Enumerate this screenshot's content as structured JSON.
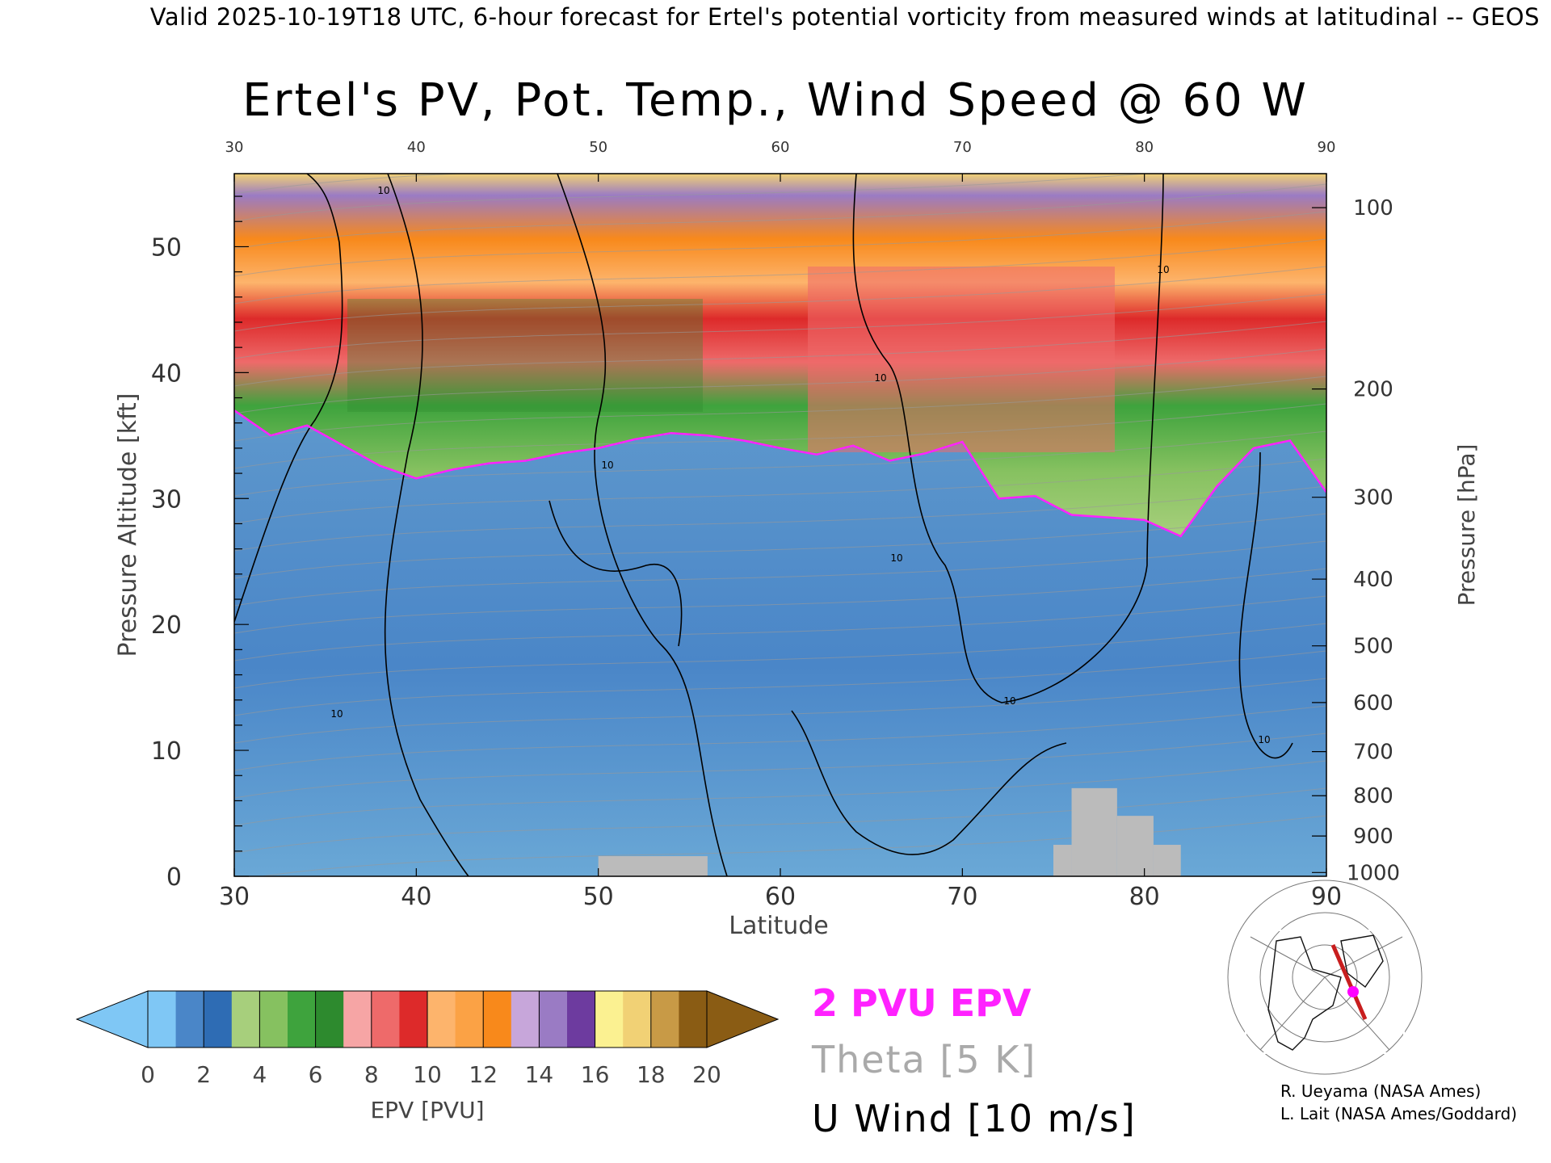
{
  "header": "Valid 2025-10-19T18 UTC, 6-hour forecast for Ertel's potential vorticity from measured winds at latitudinal -- GEOS",
  "title": "Ertel's PV, Pot. Temp., Wind Speed @ 60 W",
  "chart_data": {
    "type": "heatmap",
    "xlabel": "Latitude",
    "ylabel": "Pressure Altitude [kft]",
    "y2label": "Pressure [hPa]",
    "xlim": [
      30,
      90
    ],
    "ylim": [
      0,
      55.8
    ],
    "x_ticks": [
      "30",
      "40",
      "50",
      "60",
      "70",
      "80",
      "90"
    ],
    "top_ticks": [
      "30",
      "40",
      "50",
      "60",
      "70",
      "80",
      "90"
    ],
    "y_ticks": [
      "0",
      "10",
      "20",
      "30",
      "40",
      "50"
    ],
    "pressure_ticks": [
      {
        "label": "100",
        "kft": 53.1
      },
      {
        "label": "200",
        "kft": 38.7
      },
      {
        "label": "300",
        "kft": 30.1
      },
      {
        "label": "400",
        "kft": 23.6
      },
      {
        "label": "500",
        "kft": 18.3
      },
      {
        "label": "600",
        "kft": 13.8
      },
      {
        "label": "700",
        "kft": 9.9
      },
      {
        "label": "800",
        "kft": 6.4
      },
      {
        "label": "900",
        "kft": 3.2
      },
      {
        "label": "1000",
        "kft": 0.3
      }
    ],
    "tropopause_2pvu": [
      [
        30,
        37.0
      ],
      [
        32,
        35.0
      ],
      [
        34,
        35.8
      ],
      [
        36,
        34.2
      ],
      [
        38,
        32.6
      ],
      [
        40,
        31.6
      ],
      [
        42,
        32.3
      ],
      [
        44,
        32.8
      ],
      [
        46,
        33.0
      ],
      [
        48,
        33.6
      ],
      [
        50,
        34.0
      ],
      [
        52,
        34.7
      ],
      [
        54,
        35.2
      ],
      [
        56,
        35.0
      ],
      [
        58,
        34.6
      ],
      [
        60,
        34.0
      ],
      [
        62,
        33.5
      ],
      [
        64,
        34.2
      ],
      [
        66,
        33.0
      ],
      [
        68,
        33.6
      ],
      [
        70,
        34.5
      ],
      [
        72,
        30.0
      ],
      [
        74,
        30.2
      ],
      [
        76,
        28.7
      ],
      [
        78,
        28.5
      ],
      [
        80,
        28.3
      ],
      [
        82,
        27.0
      ],
      [
        84,
        31.0
      ],
      [
        86,
        34.0
      ],
      [
        88,
        34.6
      ],
      [
        90,
        30.5
      ]
    ],
    "colorbar": {
      "label": "EPV [PVU]",
      "ticks": [
        "0",
        "2",
        "4",
        "6",
        "8",
        "10",
        "12",
        "14",
        "16",
        "18",
        "20"
      ],
      "colors": [
        "#7fc7f5",
        "#4a86c8",
        "#2e6cb4",
        "#a7cf7c",
        "#86c160",
        "#3ea33d",
        "#2d8a2e",
        "#f6a5a5",
        "#ee6a6a",
        "#dd2a2a",
        "#fdb46c",
        "#fba245",
        "#f8891b",
        "#c7a6da",
        "#9a7bc4",
        "#6d3b9f",
        "#fbf191",
        "#f1d175",
        "#c89a46",
        "#8a5c14"
      ]
    },
    "surface_blocks": [
      {
        "x0": 50,
        "x1": 56,
        "kft": 1.6
      },
      {
        "x0": 75,
        "x1": 76,
        "kft": 2.5
      },
      {
        "x0": 76,
        "x1": 78.5,
        "kft": 7.0
      },
      {
        "x0": 78.5,
        "x1": 80.5,
        "kft": 4.8
      },
      {
        "x0": 80.5,
        "x1": 82,
        "kft": 2.5
      }
    ],
    "contour_label": "10"
  },
  "legend": {
    "pvu": "2 PVU EPV",
    "theta": "Theta [5 K]",
    "uwind": "U Wind [10 m/s]"
  },
  "credits": [
    "R. Ueyama (NASA Ames)",
    "L. Lait (NASA Ames/Goddard)"
  ],
  "colors": {
    "pvu_line": "#ff22ff",
    "surface": "#bbbbbb",
    "section_line": "#c81e1e",
    "marker": "#ff00ff"
  }
}
